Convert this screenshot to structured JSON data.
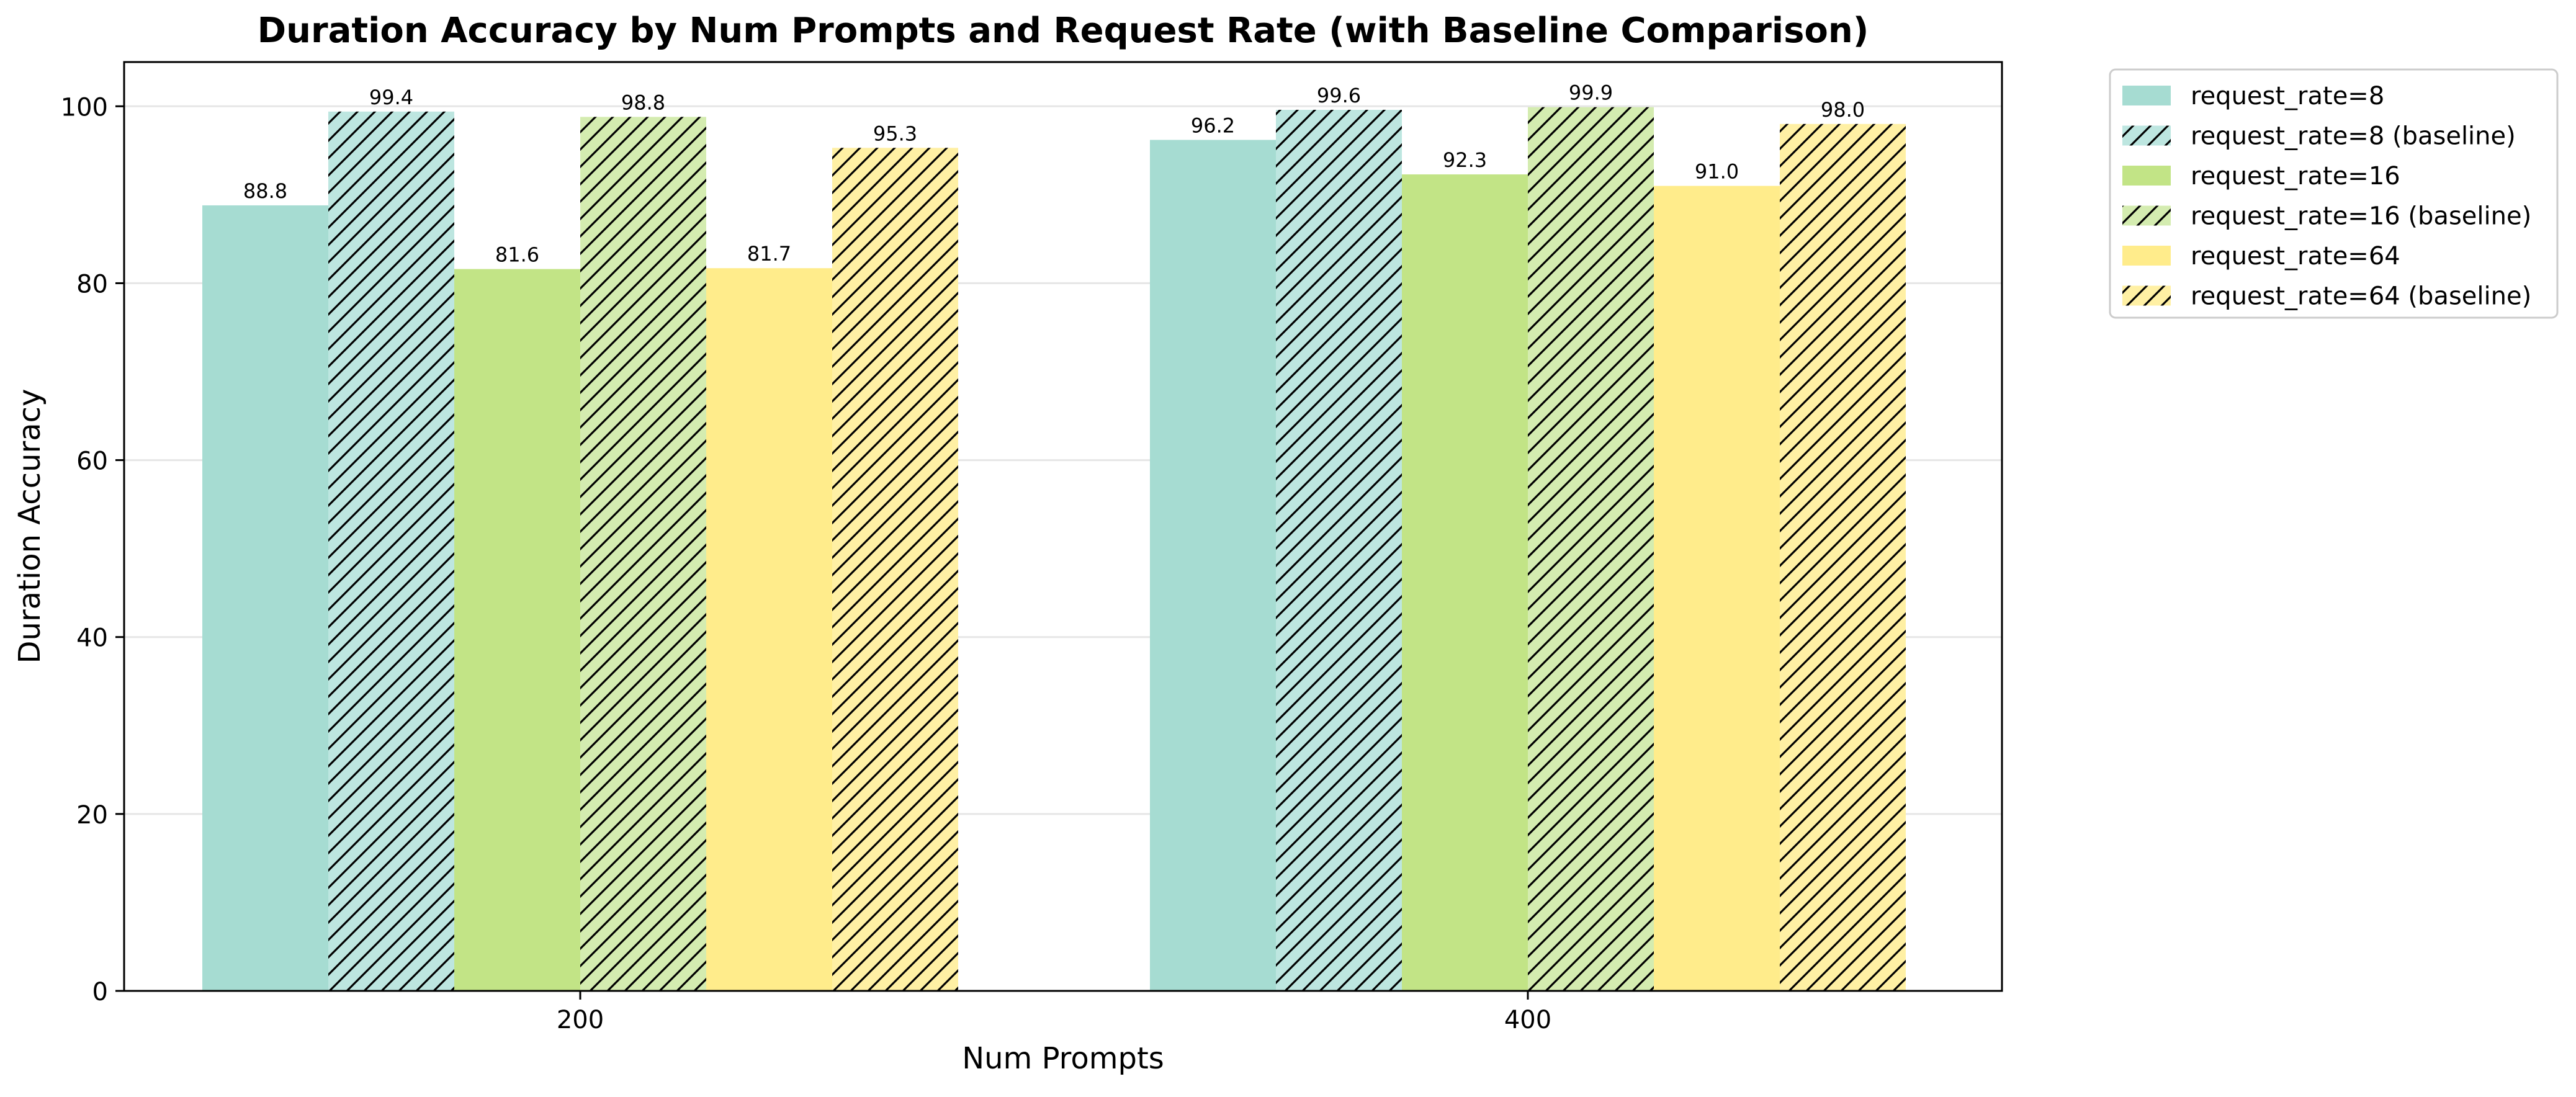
{
  "chart_data": {
    "type": "bar",
    "title": "Duration Accuracy by Num Prompts and Request Rate (with Baseline Comparison)",
    "xlabel": "Num Prompts",
    "ylabel": "Duration Accuracy",
    "categories": [
      "200",
      "400"
    ],
    "ylim": [
      0,
      105
    ],
    "yticks": [
      0,
      20,
      40,
      60,
      80,
      100
    ],
    "grid": "horizontal",
    "legend_position": "outside-top-right",
    "series": [
      {
        "name": "request_rate=8",
        "values": [
          88.8,
          96.2
        ],
        "color": "#a6dcd2",
        "hatched": false
      },
      {
        "name": "request_rate=8 (baseline)",
        "values": [
          99.4,
          99.6
        ],
        "color": "#bde6e0",
        "hatched": true
      },
      {
        "name": "request_rate=16",
        "values": [
          81.6,
          92.3
        ],
        "color": "#c2e486",
        "hatched": false
      },
      {
        "name": "request_rate=16 (baseline)",
        "values": [
          98.8,
          99.9
        ],
        "color": "#d4ecb0",
        "hatched": true
      },
      {
        "name": "request_rate=64",
        "values": [
          81.7,
          91.0
        ],
        "color": "#ffec8b",
        "hatched": false
      },
      {
        "name": "request_rate=64 (baseline)",
        "values": [
          95.3,
          98.0
        ],
        "color": "#fff0a4",
        "hatched": true
      }
    ],
    "data_labels": [
      [
        "88.8",
        "96.2"
      ],
      [
        "99.4",
        "99.6"
      ],
      [
        "81.6",
        "92.3"
      ],
      [
        "98.8",
        "99.9"
      ],
      [
        "81.7",
        "91.0"
      ],
      [
        "95.3",
        "98.0"
      ]
    ]
  }
}
